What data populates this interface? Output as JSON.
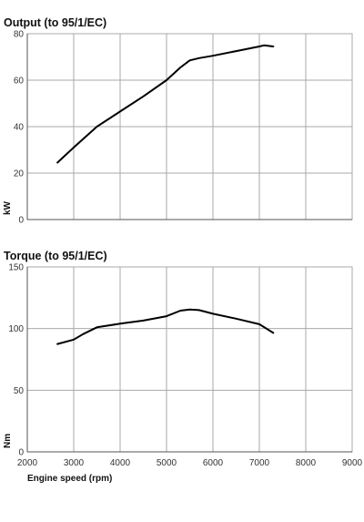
{
  "chart_data": [
    {
      "type": "line",
      "title": "Output (to 95/1/EC)",
      "xlabel": "",
      "ylabel": "kW",
      "xlim": [
        2000,
        9000
      ],
      "ylim": [
        0,
        80
      ],
      "xticks": [
        2000,
        3000,
        4000,
        5000,
        6000,
        7000,
        8000,
        9000
      ],
      "yticks": [
        0,
        20,
        40,
        60,
        80
      ],
      "ytick_labels": [
        "0",
        "20",
        "40",
        "60",
        "80"
      ],
      "grid": true,
      "series": [
        {
          "x": [
            2650,
            3000,
            3500,
            4000,
            4500,
            5000,
            5300,
            5500,
            5700,
            6000,
            6500,
            7000,
            7100,
            7300
          ],
          "y": [
            24.5,
            31,
            40,
            46.5,
            53,
            60,
            65.5,
            68.5,
            69.5,
            70.5,
            72.5,
            74.5,
            75,
            74.5
          ]
        }
      ]
    },
    {
      "type": "line",
      "title": "Torque (to 95/1/EC)",
      "xlabel": "Engine speed (rpm)",
      "ylabel": "Nm",
      "xlim": [
        2000,
        9000
      ],
      "ylim": [
        0,
        150
      ],
      "xticks": [
        2000,
        3000,
        4000,
        5000,
        6000,
        7000,
        8000,
        9000
      ],
      "xtick_labels": [
        "2000",
        "3000",
        "4000",
        "5000",
        "6000",
        "7000",
        "8000",
        "9000"
      ],
      "yticks": [
        0,
        50,
        100,
        150
      ],
      "ytick_labels": [
        "0",
        "50",
        "100",
        "150"
      ],
      "grid": true,
      "series": [
        {
          "x": [
            2650,
            3000,
            3200,
            3500,
            4000,
            4500,
            5000,
            5300,
            5500,
            5700,
            6000,
            6500,
            7000,
            7300
          ],
          "y": [
            87.5,
            91,
            95.5,
            101,
            104,
            106.5,
            110,
            114.5,
            115.5,
            115,
            112,
            108,
            103.5,
            96.5
          ]
        }
      ]
    }
  ]
}
